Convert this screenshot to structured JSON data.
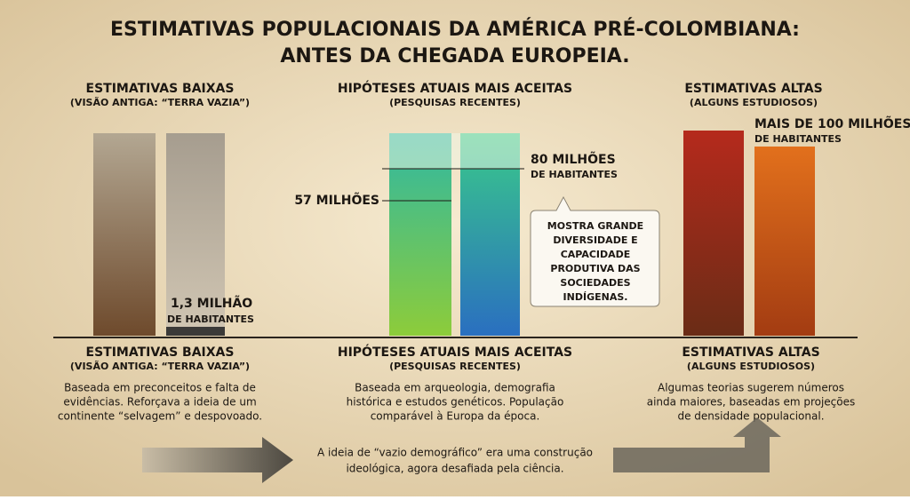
{
  "title": [
    "ESTIMATIVAS POPULACIONAIS DA AMÉRICA PRÉ-COLOMBIANA:",
    "ANTES DA CHEGADA EUROPEIA."
  ],
  "top_headers": [
    {
      "title": "ESTIMATIVAS BAIXAS",
      "subtitle": "(VISÃO ANTIGA: “TERRA VAZIA”)"
    },
    {
      "title": "HIPÓTESES ATUAIS MAIS ACEITAS",
      "subtitle": "(PESQUISAS RECENTES)"
    },
    {
      "title": "ESTIMATIVAS ALTAS",
      "subtitle": "(ALGUNS ESTUDIOSOS)"
    }
  ],
  "bar_labels": {
    "low": [
      "1,3 MILHÃO",
      "DE HABITANTES"
    ],
    "mid_low": "57 MILHÕES",
    "mid_high": [
      "80 MILHÕES",
      "DE HABITANTES"
    ],
    "high": [
      "MAIS DE 100 MILHÕES",
      "DE HABITANTES"
    ]
  },
  "callout": [
    "MOSTRA GRANDE",
    "DIVERSIDADE E",
    "CAPACIDADE",
    "PRODUTIVA DAS",
    "SOCIEDADES",
    "INDÍGENAS."
  ],
  "sections": [
    {
      "title": "ESTIMATIVAS BAIXAS",
      "subtitle": "(VISÃO ANTIGA: “TERRA VAZIA”)",
      "description": [
        "Baseada em preconceitos e falta de",
        "evidências. Reforçava a ideia de um",
        "continente “selvagem” e despovoado."
      ]
    },
    {
      "title": "HIPÓTESES ATUAIS MAIS ACEITAS",
      "subtitle": "(PESQUISAS RECENTES)",
      "description": [
        "Baseada em arqueologia, demografia",
        "histórica e estudos genéticos. População",
        "comparável à Europa da época."
      ]
    },
    {
      "title": "ESTIMATIVAS ALTAS",
      "subtitle": "(ALGUNS ESTUDIOSOS)",
      "description": [
        "Algumas teorias sugerem números",
        "ainda maiores, baseadas em projeções",
        "de densidade populacional."
      ]
    }
  ],
  "footer": [
    "A ideia de “vazio demográfico” era uma construção",
    "ideológica, agora desafiada pela ciência."
  ]
}
